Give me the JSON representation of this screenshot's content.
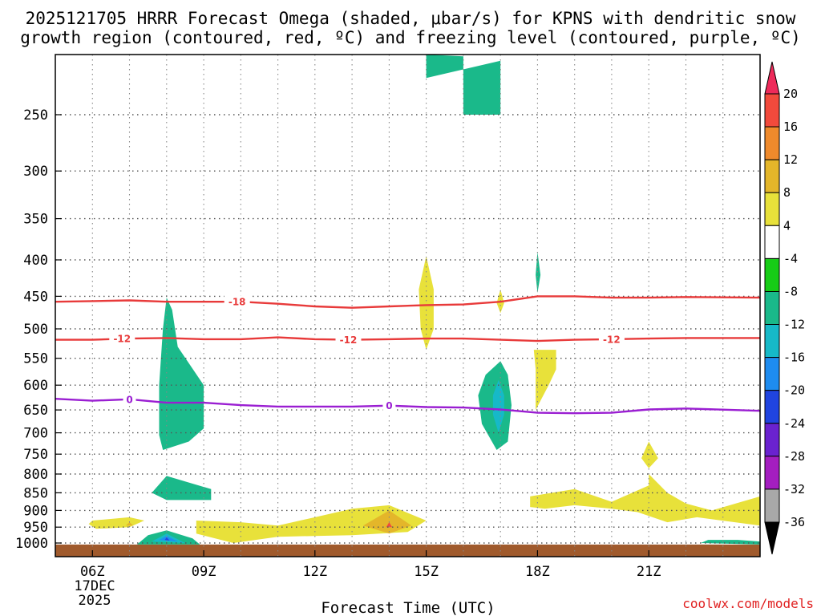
{
  "chart_data": {
    "type": "heatmap",
    "title_line1": "2025121705 HRRR Forecast Omega (shaded, μbar/s) for KPNS with dendritic snow",
    "title_line2": "growth region (contoured, red, ºC) and freezing level (contoured, purple, ºC)",
    "xlabel": "Forecast Time (UTC)",
    "credit": "coolwx.com/models",
    "x_range_hours": [
      5,
      24
    ],
    "x_ticks": [
      {
        "hour": 6,
        "label": "06Z"
      },
      {
        "hour": 9,
        "label": "09Z"
      },
      {
        "hour": 12,
        "label": "12Z"
      },
      {
        "hour": 15,
        "label": "15Z"
      },
      {
        "hour": 18,
        "label": "18Z"
      },
      {
        "hour": 21,
        "label": "21Z"
      }
    ],
    "date_label_line1": "17DEC",
    "date_label_line2": "2025",
    "y_ticks_hpa": [
      250,
      300,
      350,
      400,
      450,
      500,
      550,
      600,
      650,
      700,
      750,
      800,
      850,
      900,
      950,
      1000
    ],
    "colorbar": {
      "levels": [
        20,
        16,
        12,
        8,
        4,
        -4,
        -8,
        -12,
        -16,
        -20,
        -24,
        -28,
        -32,
        -36
      ],
      "colors": [
        "#ee2a5a",
        "#f24a3c",
        "#ef8a2c",
        "#e4b62a",
        "#e8e13a",
        "#ffffff",
        "#16cc16",
        "#1ab98a",
        "#16b9c8",
        "#1e8cf0",
        "#2044e0",
        "#6a22d0",
        "#a41ec0",
        "#a8a8a8",
        "#000000"
      ]
    },
    "contours": [
      {
        "name": "-18C",
        "label": "-18",
        "color": "#e83a3a",
        "points": [
          [
            5,
            458
          ],
          [
            6,
            457
          ],
          [
            7,
            456
          ],
          [
            8,
            458
          ],
          [
            9,
            458
          ],
          [
            10,
            458
          ],
          [
            11,
            461
          ],
          [
            12,
            465
          ],
          [
            13,
            467
          ],
          [
            14,
            465
          ],
          [
            15,
            463
          ],
          [
            16,
            462
          ],
          [
            17,
            458
          ],
          [
            18,
            450
          ],
          [
            19,
            450
          ],
          [
            20,
            452
          ],
          [
            21,
            452
          ],
          [
            22,
            451
          ],
          [
            24,
            452
          ]
        ]
      },
      {
        "name": "-12C",
        "label": "-12",
        "color": "#e83a3a",
        "points": [
          [
            5,
            518
          ],
          [
            6,
            518
          ],
          [
            7,
            516
          ],
          [
            8,
            515
          ],
          [
            9,
            517
          ],
          [
            10,
            517
          ],
          [
            11,
            514
          ],
          [
            12,
            517
          ],
          [
            13,
            518
          ],
          [
            14,
            517
          ],
          [
            15,
            516
          ],
          [
            16,
            516
          ],
          [
            17,
            518
          ],
          [
            18,
            520
          ],
          [
            19,
            518
          ],
          [
            20,
            517
          ],
          [
            21,
            516
          ],
          [
            22,
            515
          ],
          [
            24,
            515
          ]
        ]
      },
      {
        "name": "0C",
        "label": "0",
        "color": "#9a1ed2",
        "points": [
          [
            5,
            627
          ],
          [
            6,
            631
          ],
          [
            7,
            628
          ],
          [
            8,
            635
          ],
          [
            9,
            635
          ],
          [
            10,
            640
          ],
          [
            11,
            643
          ],
          [
            12,
            643
          ],
          [
            13,
            643
          ],
          [
            14,
            641
          ],
          [
            15,
            644
          ],
          [
            16,
            645
          ],
          [
            17,
            649
          ],
          [
            18,
            656
          ],
          [
            19,
            657
          ],
          [
            20,
            656
          ],
          [
            21,
            649
          ],
          [
            22,
            647
          ],
          [
            24,
            652
          ]
        ]
      }
    ],
    "contour_labels": [
      {
        "contour": "-18C",
        "label": "-18",
        "hour": 9.9,
        "hpa": 458
      },
      {
        "contour": "-12C",
        "label": "-12",
        "hour": 6.8,
        "hpa": 516
      },
      {
        "contour": "-12C",
        "label": "-12",
        "hour": 12.9,
        "hpa": 518
      },
      {
        "contour": "-12C",
        "label": "-12",
        "hour": 20.0,
        "hpa": 517
      },
      {
        "contour": "0C",
        "label": "0",
        "hour": 7.0,
        "hpa": 628
      },
      {
        "contour": "0C",
        "label": "0",
        "hour": 14.0,
        "hpa": 641
      }
    ],
    "omega_regions": [
      {
        "name": "upper-green-block",
        "level": -8,
        "points": [
          [
            15.0,
            203
          ],
          [
            16.0,
            207
          ],
          [
            16.0,
            250
          ],
          [
            17.0,
            250
          ],
          [
            17.0,
            210
          ],
          [
            15.0,
            222
          ]
        ]
      },
      {
        "name": "green-plume-08z",
        "level": -8,
        "points": [
          [
            8.0,
            452
          ],
          [
            7.9,
            500
          ],
          [
            7.8,
            600
          ],
          [
            7.8,
            705
          ],
          [
            7.9,
            740
          ],
          [
            8.6,
            720
          ],
          [
            9.0,
            690
          ],
          [
            9.0,
            600
          ],
          [
            8.3,
            530
          ],
          [
            8.15,
            470
          ]
        ]
      },
      {
        "name": "green-patch-08z-850",
        "level": -8,
        "points": [
          [
            7.6,
            850
          ],
          [
            8.0,
            805
          ],
          [
            9.2,
            840
          ],
          [
            9.2,
            870
          ],
          [
            8.0,
            870
          ]
        ]
      },
      {
        "name": "green-eye-17z",
        "level": -8,
        "points": [
          [
            17.0,
            555
          ],
          [
            16.6,
            580
          ],
          [
            16.4,
            620
          ],
          [
            16.5,
            680
          ],
          [
            16.9,
            740
          ],
          [
            17.2,
            720
          ],
          [
            17.3,
            640
          ],
          [
            17.2,
            580
          ]
        ]
      },
      {
        "name": "teal-eye-17z",
        "level": -12,
        "points": [
          [
            16.95,
            590
          ],
          [
            16.8,
            620
          ],
          [
            16.8,
            660
          ],
          [
            16.95,
            700
          ],
          [
            17.1,
            660
          ],
          [
            17.1,
            620
          ]
        ]
      },
      {
        "name": "green-spike-18z",
        "level": -8,
        "points": [
          [
            18.0,
            390
          ],
          [
            17.95,
            420
          ],
          [
            18.0,
            445
          ],
          [
            18.08,
            420
          ]
        ]
      },
      {
        "name": "green-surface-22z",
        "level": -8,
        "points": [
          [
            22.4,
            1000
          ],
          [
            22.6,
            990
          ],
          [
            23.4,
            990
          ],
          [
            24.0,
            995
          ],
          [
            24.0,
            1005
          ]
        ]
      },
      {
        "name": "yellow-15z-column",
        "level": 4,
        "points": [
          [
            15.0,
            395
          ],
          [
            14.8,
            440
          ],
          [
            14.85,
            500
          ],
          [
            15.0,
            535
          ],
          [
            15.2,
            500
          ],
          [
            15.2,
            440
          ]
        ]
      },
      {
        "name": "yellow-17z-blip",
        "level": 4,
        "points": [
          [
            17.0,
            440
          ],
          [
            16.9,
            460
          ],
          [
            17.0,
            475
          ],
          [
            17.1,
            460
          ]
        ]
      },
      {
        "name": "yellow-18z-column",
        "level": 4,
        "points": [
          [
            17.9,
            535
          ],
          [
            17.95,
            570
          ],
          [
            17.95,
            650
          ],
          [
            18.3,
            600
          ],
          [
            18.5,
            570
          ],
          [
            18.5,
            535
          ]
        ]
      },
      {
        "name": "yellow-21z-blip",
        "level": 4,
        "points": [
          [
            21.0,
            720
          ],
          [
            20.8,
            760
          ],
          [
            21.0,
            785
          ],
          [
            21.25,
            760
          ]
        ]
      },
      {
        "name": "yellow-0630-cell",
        "level": 4,
        "points": [
          [
            5.9,
            940
          ],
          [
            6.0,
            930
          ],
          [
            7.0,
            920
          ],
          [
            7.4,
            930
          ],
          [
            7.0,
            950
          ],
          [
            6.1,
            955
          ]
        ]
      },
      {
        "name": "yellow-low-band",
        "level": 4,
        "points": [
          [
            8.8,
            930
          ],
          [
            10.0,
            935
          ],
          [
            11.0,
            945
          ],
          [
            12.0,
            920
          ],
          [
            13.0,
            895
          ],
          [
            14.0,
            885
          ],
          [
            15.0,
            930
          ],
          [
            14.5,
            965
          ],
          [
            13.0,
            975
          ],
          [
            11.0,
            980
          ],
          [
            9.8,
            1000
          ],
          [
            8.8,
            970
          ]
        ]
      },
      {
        "name": "yellow-late-band",
        "level": 4,
        "points": [
          [
            17.8,
            860
          ],
          [
            19.0,
            840
          ],
          [
            20.0,
            875
          ],
          [
            21.0,
            830
          ],
          [
            21.0,
            800
          ],
          [
            21.5,
            850
          ],
          [
            22.0,
            880
          ],
          [
            22.7,
            900
          ],
          [
            24.0,
            860
          ],
          [
            24.0,
            945
          ],
          [
            22.3,
            920
          ],
          [
            21.5,
            935
          ],
          [
            20.7,
            905
          ],
          [
            20.0,
            895
          ],
          [
            19.0,
            885
          ],
          [
            18.2,
            895
          ],
          [
            17.8,
            890
          ]
        ]
      },
      {
        "name": "orange-14z-core",
        "level": 8,
        "points": [
          [
            14.0,
            900
          ],
          [
            13.3,
            945
          ],
          [
            14.0,
            970
          ],
          [
            14.6,
            945
          ]
        ]
      },
      {
        "name": "orange-0630-dot",
        "level": 8,
        "points": [
          [
            7.0,
            935
          ],
          [
            6.9,
            945
          ],
          [
            7.1,
            945
          ]
        ]
      },
      {
        "name": "red-14z-dot",
        "level": 16,
        "points": [
          [
            14.0,
            935
          ],
          [
            13.92,
            950
          ],
          [
            14.08,
            950
          ]
        ]
      },
      {
        "name": "green-08z-surface",
        "level": -8,
        "points": [
          [
            7.2,
            1005
          ],
          [
            7.5,
            975
          ],
          [
            8.0,
            960
          ],
          [
            8.7,
            985
          ],
          [
            8.9,
            1005
          ]
        ]
      },
      {
        "name": "teal-08z-surface",
        "level": -12,
        "points": [
          [
            7.6,
            995
          ],
          [
            8.0,
            970
          ],
          [
            8.5,
            1000
          ]
        ]
      },
      {
        "name": "cyan-08z-surface",
        "level": -16,
        "points": [
          [
            7.8,
            990
          ],
          [
            8.0,
            978
          ],
          [
            8.3,
            995
          ]
        ]
      },
      {
        "name": "blue-08z-core",
        "level": -20,
        "points": [
          [
            7.95,
            990
          ],
          [
            8.0,
            982
          ],
          [
            8.08,
            992
          ]
        ]
      }
    ],
    "surface_terrain": {
      "color": "#a05a2c",
      "top_hpa": 1005
    }
  }
}
